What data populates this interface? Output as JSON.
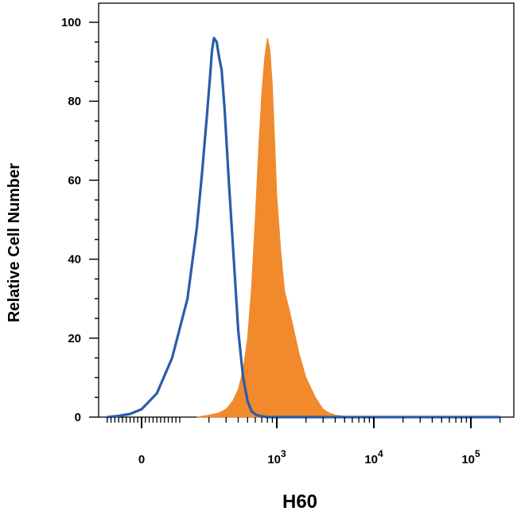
{
  "chart_data": {
    "type": "area",
    "title": "",
    "xlabel": "H60",
    "ylabel": "Relative Cell Number",
    "x_scale": "biexponential",
    "ylim": [
      0,
      100
    ],
    "y_ticks": [
      "0",
      "20",
      "40",
      "60",
      "80",
      "100"
    ],
    "x_ticks": [
      {
        "base": "0",
        "exp": ""
      },
      {
        "base": "10",
        "exp": "3"
      },
      {
        "base": "10",
        "exp": "4"
      },
      {
        "base": "10",
        "exp": "5"
      }
    ],
    "grid": false,
    "legend": "none",
    "series": [
      {
        "style": "outline",
        "color": "#2a5ca8",
        "x": [
          -90,
          -60,
          -30,
          0,
          40,
          80,
          120,
          150,
          170,
          190,
          205,
          215,
          225,
          240,
          255,
          270,
          290,
          320,
          360,
          400,
          450,
          500,
          550,
          620,
          700,
          800,
          900,
          1000,
          1200,
          1500,
          2000,
          3000,
          5000,
          10000,
          20000,
          50000,
          100000,
          200000
        ],
        "y": [
          0,
          0.3,
          0.8,
          2,
          6,
          15,
          30,
          48,
          62,
          76,
          86,
          93,
          96,
          95,
          91,
          88,
          78,
          60,
          40,
          22,
          10,
          4,
          1.5,
          0.5,
          0.2,
          0,
          0,
          0,
          0,
          0,
          0,
          0,
          0,
          0,
          0,
          0,
          0,
          0
        ]
      },
      {
        "style": "filled",
        "color": "#f08a2c",
        "x": [
          150,
          200,
          250,
          300,
          350,
          400,
          450,
          500,
          550,
          600,
          650,
          700,
          750,
          800,
          850,
          900,
          950,
          1000,
          1100,
          1200,
          1350,
          1500,
          1700,
          2000,
          2500,
          3000,
          3500,
          4000,
          5000,
          7000
        ],
        "y": [
          0,
          0.5,
          1,
          2,
          4,
          7,
          12,
          20,
          33,
          50,
          68,
          82,
          91,
          96,
          93,
          84,
          70,
          56,
          42,
          32,
          27,
          22,
          16,
          10,
          5,
          2,
          1,
          0.5,
          0.2,
          0
        ]
      }
    ]
  }
}
